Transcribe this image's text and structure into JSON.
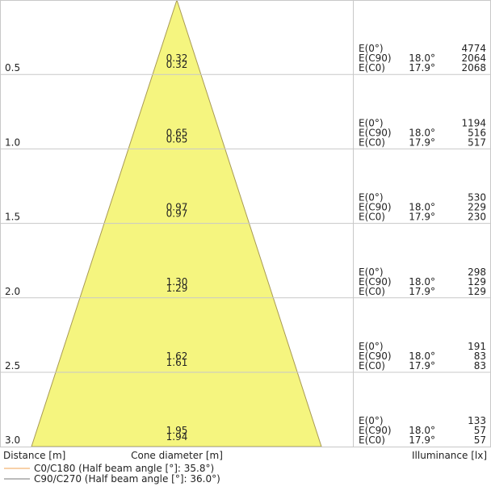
{
  "rows": [
    {
      "distance": "0.5",
      "diameter_c90": "0.32",
      "diameter_c0": "0.32",
      "e0_label": "E(0°)",
      "e0": "4774",
      "ec90_label": "E(C90)",
      "ec90_angle": "18.0°",
      "ec90": "2064",
      "ec0_label": "E(C0)",
      "ec0_angle": "17.9°",
      "ec0": "2068"
    },
    {
      "distance": "1.0",
      "diameter_c90": "0.65",
      "diameter_c0": "0.65",
      "e0_label": "E(0°)",
      "e0": "1194",
      "ec90_label": "E(C90)",
      "ec90_angle": "18.0°",
      "ec90": "516",
      "ec0_label": "E(C0)",
      "ec0_angle": "17.9°",
      "ec0": "517"
    },
    {
      "distance": "1.5",
      "diameter_c90": "0.97",
      "diameter_c0": "0.97",
      "e0_label": "E(0°)",
      "e0": "530",
      "ec90_label": "E(C90)",
      "ec90_angle": "18.0°",
      "ec90": "229",
      "ec0_label": "E(C0)",
      "ec0_angle": "17.9°",
      "ec0": "230"
    },
    {
      "distance": "2.0",
      "diameter_c90": "1.30",
      "diameter_c0": "1.29",
      "e0_label": "E(0°)",
      "e0": "298",
      "ec90_label": "E(C90)",
      "ec90_angle": "18.0°",
      "ec90": "129",
      "ec0_label": "E(C0)",
      "ec0_angle": "17.9°",
      "ec0": "129"
    },
    {
      "distance": "2.5",
      "diameter_c90": "1.62",
      "diameter_c0": "1.61",
      "e0_label": "E(0°)",
      "e0": "191",
      "ec90_label": "E(C90)",
      "ec90_angle": "18.0°",
      "ec90": "83",
      "ec0_label": "E(C0)",
      "ec0_angle": "17.9°",
      "ec0": "83"
    },
    {
      "distance": "3.0",
      "diameter_c90": "1.95",
      "diameter_c0": "1.94",
      "e0_label": "E(0°)",
      "e0": "133",
      "ec90_label": "E(C90)",
      "ec90_angle": "18.0°",
      "ec90": "57",
      "ec0_label": "E(C0)",
      "ec0_angle": "17.9°",
      "ec0": "57"
    }
  ],
  "footer": {
    "distance_label": "Distance [m]",
    "diameter_label": "Cone diameter [m]",
    "illuminance_label": "Illuminance [lx]"
  },
  "legend": [
    {
      "text": "C0/C180 (Half beam angle [°]: 35.8°)",
      "color": "#f0a050"
    },
    {
      "text": "C90/C270 (Half beam angle [°]: 36.0°)",
      "color": "#777777"
    }
  ]
}
